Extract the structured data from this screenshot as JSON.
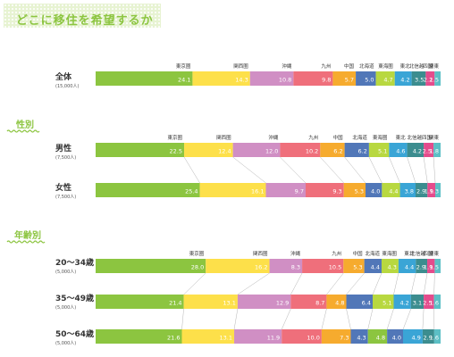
{
  "title": "どこに移住を希望するか",
  "sections": {
    "gender": "性別",
    "age": "年齢別"
  },
  "colors": [
    "#8cc540",
    "#fde04a",
    "#d08fc4",
    "#ef6f7b",
    "#f6ab2e",
    "#5177b8",
    "#b8d840",
    "#3aa5d6",
    "#3c8d8f",
    "#e44c8c",
    "#5cbfc5"
  ],
  "chart_data": {
    "type": "bar",
    "stacked": true,
    "orientation": "horizontal",
    "categories": [
      "東京圏",
      "関西圏",
      "沖縄",
      "九州",
      "中国",
      "北海道",
      "東海圏",
      "東北",
      "北信越",
      "四国",
      "関東"
    ],
    "rows": [
      {
        "label": "全体",
        "sub": "(15,000人)",
        "cat_labels": [
          "東京圏",
          "関西圏",
          "沖縄",
          "九州",
          "中国",
          "北海道",
          "東海圏",
          "東北",
          "北信越",
          "四国",
          "関東"
        ],
        "values": [
          24.1,
          14.3,
          10.8,
          9.8,
          5.7,
          5.0,
          4.7,
          4.2,
          3.5,
          2.2,
          1.5
        ],
        "colors": [
          "#8cc540",
          "#fde04a",
          "#d08fc4",
          "#ef6f7b",
          "#f6ab2e",
          "#5177b8",
          "#b8d840",
          "#3aa5d6",
          "#3c8d8f",
          "#e44c8c",
          "#5cbfc5"
        ]
      },
      {
        "label": "男性",
        "sub": "(7,500人)",
        "cat_labels": [
          "東京圏",
          "関西圏",
          "沖縄",
          "九州",
          "中国",
          "北海道",
          "東海圏",
          "東北",
          "北信越",
          "四国",
          "関東"
        ],
        "values": [
          22.5,
          12.4,
          12.0,
          10.2,
          6.2,
          6.2,
          5.1,
          4.6,
          4.2,
          2.5,
          1.8
        ],
        "colors": [
          "#8cc540",
          "#fde04a",
          "#d08fc4",
          "#ef6f7b",
          "#f6ab2e",
          "#5177b8",
          "#b8d840",
          "#3aa5d6",
          "#3c8d8f",
          "#e44c8c",
          "#5cbfc5"
        ]
      },
      {
        "label": "女性",
        "sub": "(7,500人)",
        "cat_labels": [],
        "values": [
          25.4,
          16.1,
          9.7,
          9.3,
          5.3,
          4.0,
          4.4,
          3.8,
          2.9,
          1.9,
          1.3
        ],
        "colors": [
          "#8cc540",
          "#fde04a",
          "#d08fc4",
          "#ef6f7b",
          "#f6ab2e",
          "#5177b8",
          "#b8d840",
          "#3aa5d6",
          "#3c8d8f",
          "#e44c8c",
          "#5cbfc5"
        ]
      },
      {
        "label": "20～34歳",
        "sub": "(5,000人)",
        "cat_labels": [
          "東京圏",
          "関西圏",
          "沖縄",
          "九州",
          "中国",
          "北海道",
          "東海圏",
          "東北",
          "北信越",
          "四国",
          "関東"
        ],
        "values": [
          28.0,
          16.2,
          8.3,
          10.5,
          5.3,
          4.4,
          4.3,
          4.4,
          2.9,
          1.9,
          1.5
        ],
        "colors": [
          "#8cc540",
          "#fde04a",
          "#d08fc4",
          "#ef6f7b",
          "#f6ab2e",
          "#5177b8",
          "#b8d840",
          "#3aa5d6",
          "#3c8d8f",
          "#e44c8c",
          "#5cbfc5"
        ]
      },
      {
        "label": "35～49歳",
        "sub": "(5,000人)",
        "cat_labels": [],
        "values": [
          21.4,
          13.1,
          12.9,
          8.7,
          4.8,
          6.4,
          5.1,
          4.2,
          3.1,
          2.5,
          1.6
        ],
        "colors": [
          "#8cc540",
          "#fde04a",
          "#d08fc4",
          "#ef6f7b",
          "#f6ab2e",
          "#5177b8",
          "#b8d840",
          "#3aa5d6",
          "#3c8d8f",
          "#e44c8c",
          "#5cbfc5"
        ]
      },
      {
        "label": "50～64歳",
        "sub": "(5,000人)",
        "cat_labels": [],
        "values": [
          21.6,
          13.1,
          11.9,
          10.0,
          7.3,
          4.3,
          4.8,
          4.0,
          4.9,
          2.9,
          1.6
        ],
        "colors": [
          "#8cc540",
          "#fde04a",
          "#d08fc4",
          "#ef6f7b",
          "#f6ab2e",
          "#5177b8",
          "#8cc540",
          "#5177b8",
          "#3aa5d6",
          "#3c8d8f",
          "#5cbfc5"
        ]
      }
    ]
  }
}
